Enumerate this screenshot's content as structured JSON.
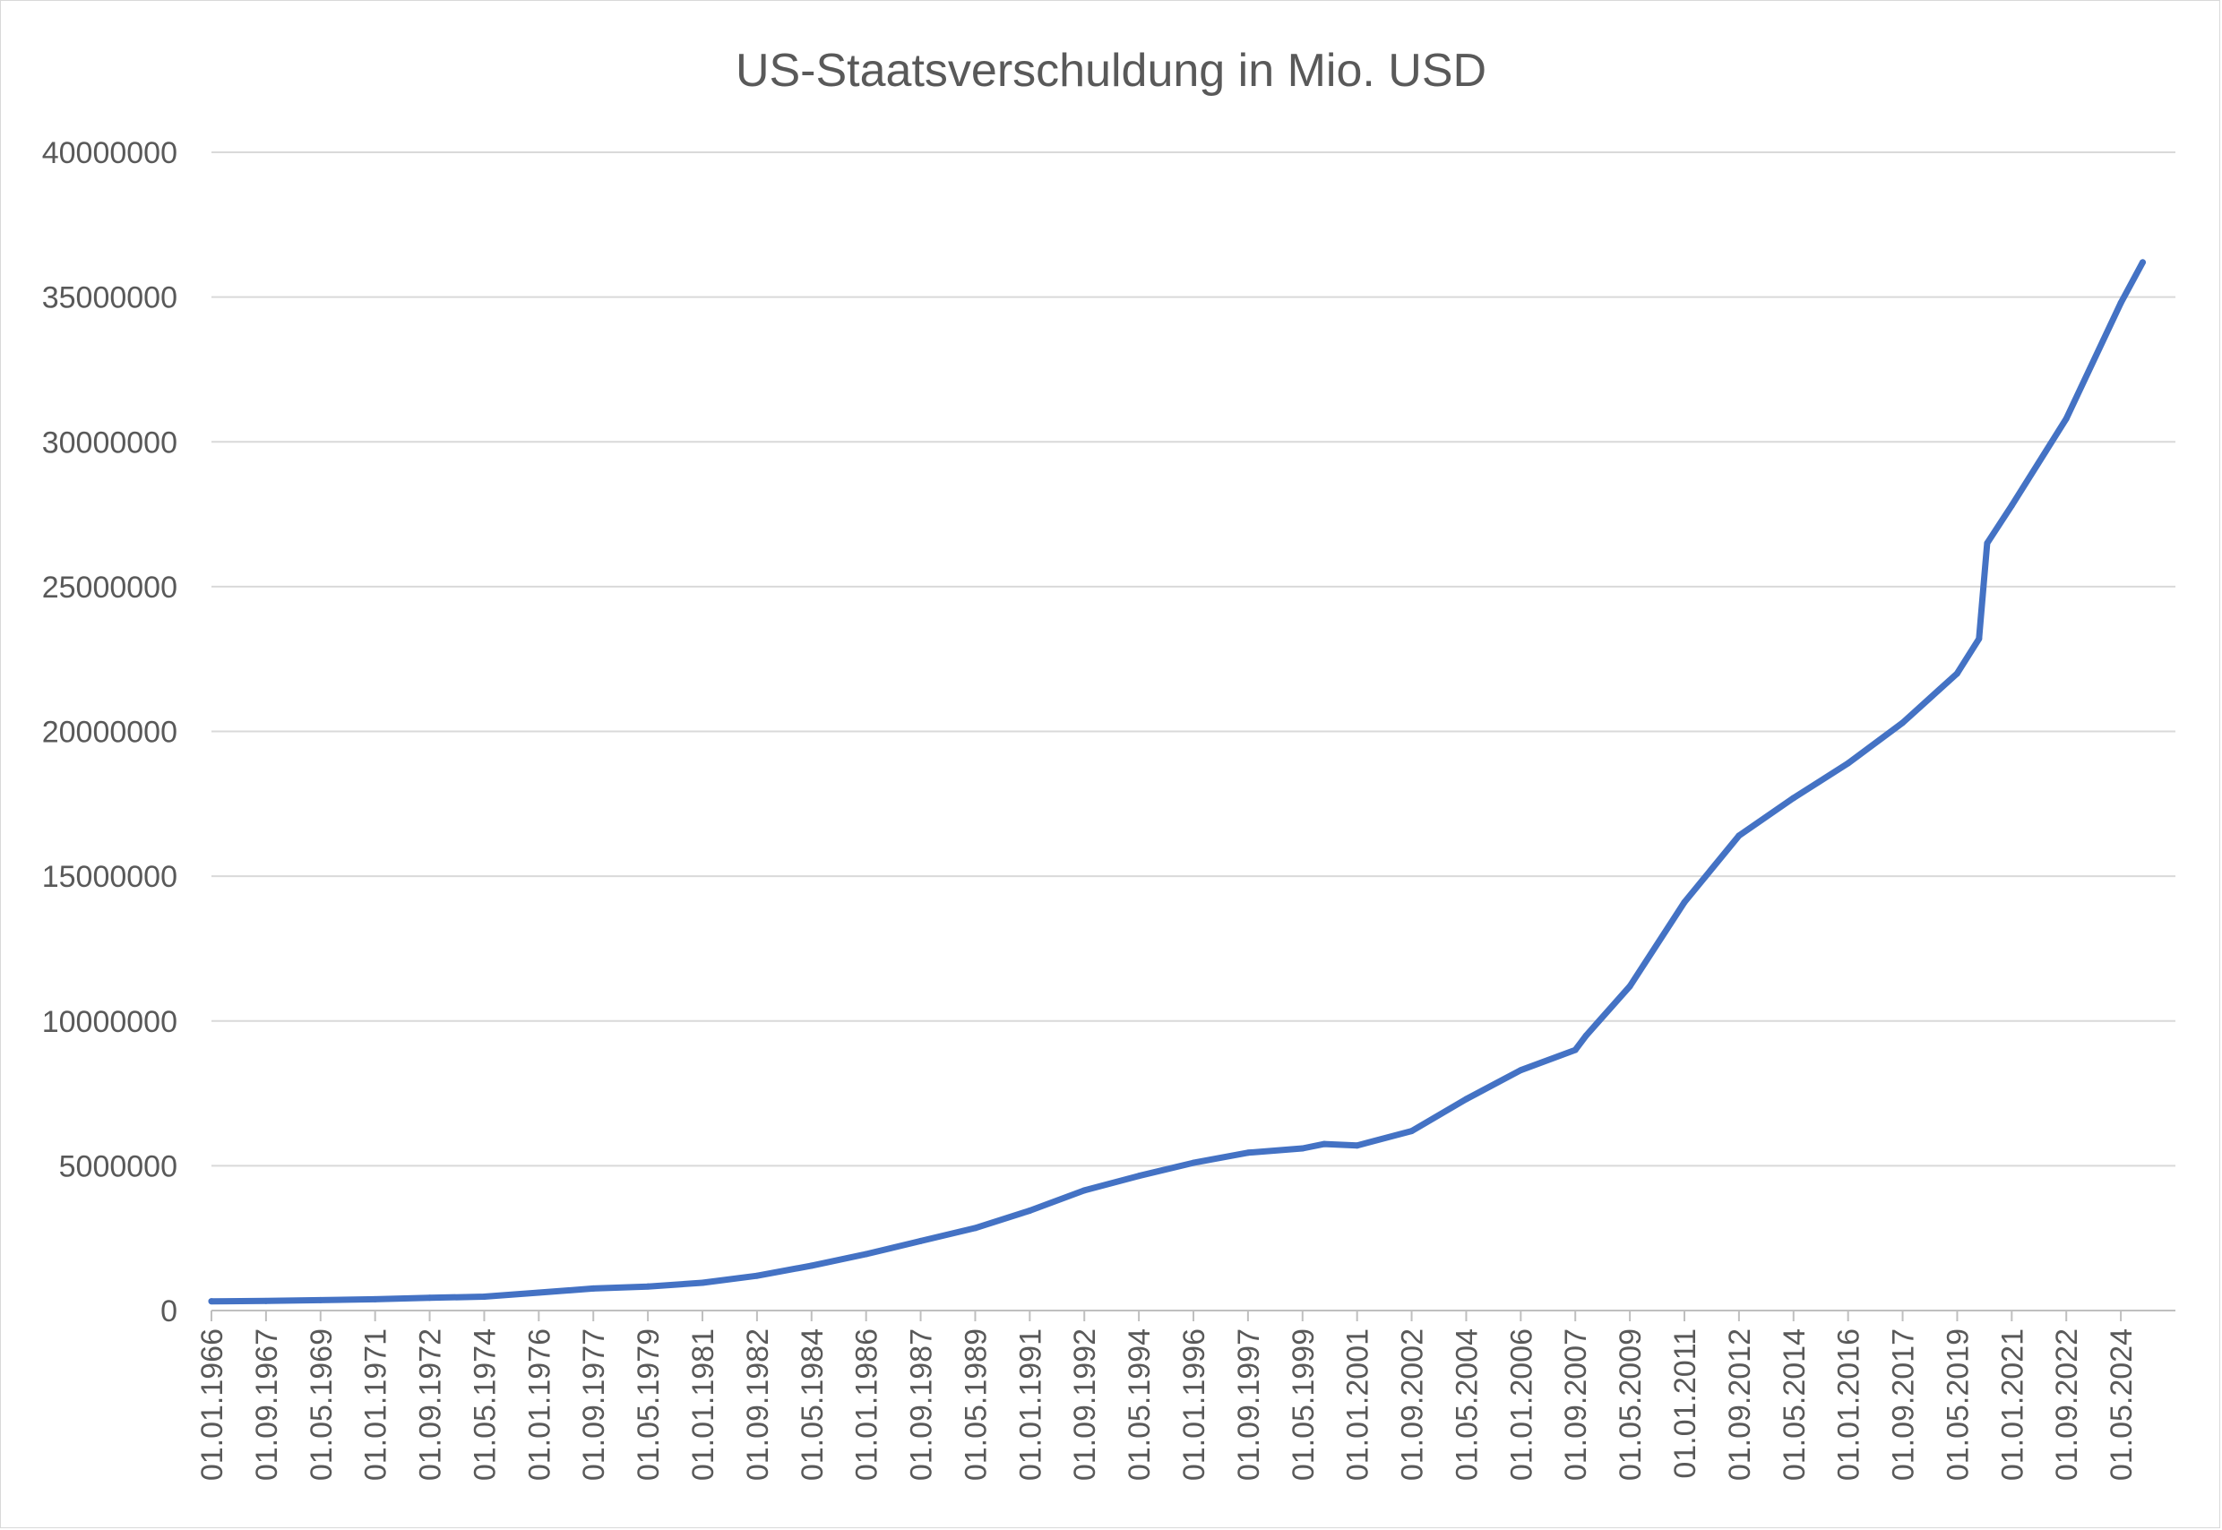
{
  "chart_data": {
    "type": "line",
    "title": "US-Staatsverschuldung in Mio. USD",
    "xlabel": "",
    "ylabel": "",
    "ylim": [
      0,
      40000000
    ],
    "y_ticks": [
      "0",
      "5000000",
      "10000000",
      "15000000",
      "20000000",
      "25000000",
      "30000000",
      "35000000",
      "40000000"
    ],
    "x_tick_labels": [
      "01.01.1966",
      "01.09.1967",
      "01.05.1969",
      "01.01.1971",
      "01.09.1972",
      "01.05.1974",
      "01.01.1976",
      "01.09.1977",
      "01.05.1979",
      "01.01.1981",
      "01.09.1982",
      "01.05.1984",
      "01.01.1986",
      "01.09.1987",
      "01.05.1989",
      "01.01.1991",
      "01.09.1992",
      "01.05.1994",
      "01.01.1996",
      "01.09.1997",
      "01.05.1999",
      "01.01.2001",
      "01.09.2002",
      "01.05.2004",
      "01.01.2006",
      "01.09.2007",
      "01.05.2009",
      "01.01.2011",
      "01.09.2012",
      "01.05.2014",
      "01.01.2016",
      "01.09.2017",
      "01.05.2019",
      "01.01.2021",
      "01.09.2022",
      "01.05.2024"
    ],
    "grid": true,
    "legend": "none",
    "series": [
      {
        "color": "#4472c4",
        "x": [
          "01.01.1966",
          "01.09.1967",
          "01.05.1969",
          "01.01.1971",
          "01.09.1972",
          "01.05.1974",
          "01.01.1976",
          "01.09.1977",
          "01.05.1979",
          "01.01.1981",
          "01.09.1982",
          "01.05.1984",
          "01.01.1986",
          "01.09.1987",
          "01.05.1989",
          "01.01.1991",
          "01.09.1992",
          "01.05.1994",
          "01.01.1996",
          "01.09.1997",
          "01.05.1999",
          "01.01.2000",
          "01.01.2001",
          "01.09.2002",
          "01.05.2004",
          "01.01.2006",
          "01.09.2007",
          "01.01.2008",
          "01.05.2009",
          "01.01.2011",
          "01.09.2012",
          "01.05.2014",
          "01.01.2016",
          "01.09.2017",
          "01.05.2019",
          "01.01.2020",
          "01.04.2020",
          "01.01.2021",
          "01.09.2022",
          "01.05.2024",
          "01.01.2025"
        ],
        "values": [
          320000,
          330000,
          360000,
          390000,
          440000,
          480000,
          620000,
          760000,
          830000,
          960000,
          1200000,
          1550000,
          1950000,
          2400000,
          2850000,
          3450000,
          4150000,
          4650000,
          5100000,
          5450000,
          5600000,
          5750000,
          5700000,
          6200000,
          7300000,
          8300000,
          9000000,
          9500000,
          11200000,
          14100000,
          16400000,
          17700000,
          18900000,
          20300000,
          22000000,
          23200000,
          26500000,
          27800000,
          30800000,
          34800000,
          36200000
        ]
      }
    ]
  }
}
